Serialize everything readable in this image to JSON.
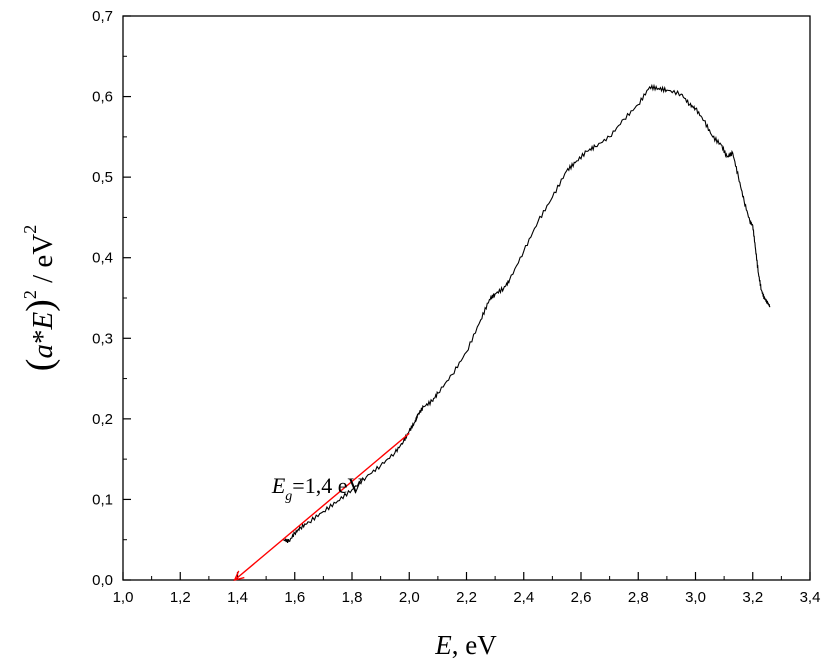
{
  "chart_data": {
    "type": "line",
    "title": "",
    "xlabel": {
      "var": "E",
      "rest": ", eV"
    },
    "ylabel": {
      "open": "(",
      "var1": "a",
      "mid": "*",
      "var2": "E",
      "close": ")",
      "sup1": "2",
      "unit": " / eV",
      "sup2": "2"
    },
    "xlim": [
      1.0,
      3.4
    ],
    "ylim": [
      0.0,
      0.7
    ],
    "xticks": [
      "1,0",
      "1,2",
      "1,4",
      "1,6",
      "1,8",
      "2,0",
      "2,2",
      "2,4",
      "2,6",
      "2,8",
      "3,0",
      "3,2",
      "3,4"
    ],
    "yticks": [
      "0,0",
      "0,1",
      "0,2",
      "0,3",
      "0,4",
      "0,5",
      "0,6",
      "0,7"
    ],
    "series": [
      {
        "color": "#000000",
        "x": [
          1.56,
          1.58,
          1.6,
          1.62,
          1.65,
          1.7,
          1.75,
          1.8,
          1.85,
          1.9,
          1.95,
          1.98,
          2.0,
          2.02,
          2.03,
          2.05,
          2.08,
          2.1,
          2.15,
          2.2,
          2.25,
          2.28,
          2.3,
          2.33,
          2.35,
          2.4,
          2.45,
          2.5,
          2.55,
          2.58,
          2.62,
          2.65,
          2.7,
          2.75,
          2.8,
          2.84,
          2.87,
          2.9,
          2.95,
          2.98,
          3.0,
          3.03,
          3.06,
          3.09,
          3.11,
          3.13,
          3.15,
          3.17,
          3.19,
          3.2,
          3.21,
          3.22,
          3.23,
          3.24,
          3.25,
          3.26
        ],
        "y": [
          0.05,
          0.048,
          0.058,
          0.065,
          0.072,
          0.085,
          0.098,
          0.112,
          0.128,
          0.142,
          0.158,
          0.172,
          0.185,
          0.196,
          0.205,
          0.215,
          0.222,
          0.232,
          0.255,
          0.283,
          0.323,
          0.348,
          0.355,
          0.362,
          0.372,
          0.408,
          0.445,
          0.475,
          0.508,
          0.518,
          0.532,
          0.538,
          0.55,
          0.572,
          0.59,
          0.612,
          0.61,
          0.608,
          0.603,
          0.59,
          0.585,
          0.57,
          0.55,
          0.54,
          0.525,
          0.53,
          0.5,
          0.47,
          0.445,
          0.44,
          0.41,
          0.38,
          0.36,
          0.35,
          0.345,
          0.34
        ]
      }
    ],
    "fit_line": {
      "color": "#ff0000",
      "x": [
        2.0,
        1.39
      ],
      "y": [
        0.182,
        0.0
      ]
    },
    "annotation": {
      "var": "E",
      "sub": "g",
      "text": "=1,4 eV",
      "x": 1.52,
      "y": 0.108
    }
  }
}
